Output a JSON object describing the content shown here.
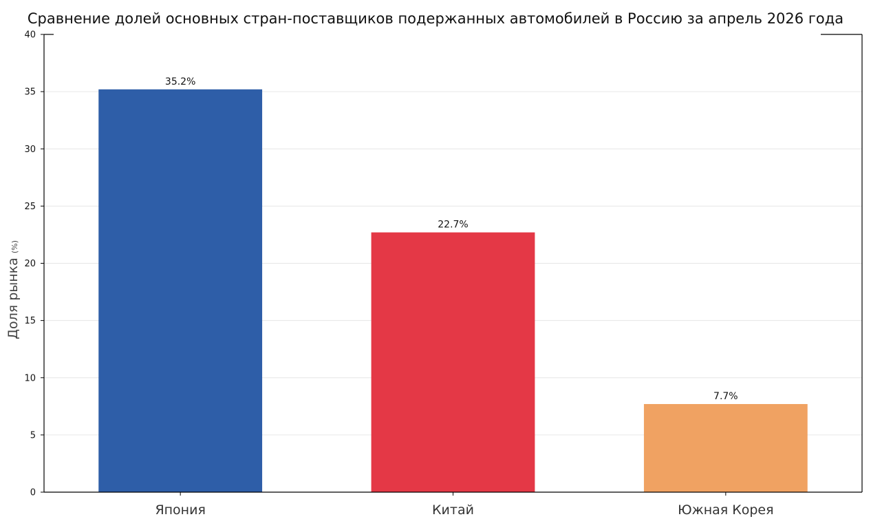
{
  "chart_data": {
    "type": "bar",
    "title": "Сравнение долей основных стран-поставщиков подержанных автомобилей в Россию за апрель 2026 года",
    "xlabel": "",
    "ylabel": "Доля рынка",
    "ylabel_unit": "(%)",
    "categories": [
      "Япония",
      "Китай",
      "Южная Корея"
    ],
    "values": [
      35.2,
      22.7,
      7.7
    ],
    "value_labels": [
      "35.2%",
      "22.7%",
      "7.7%"
    ],
    "colors": [
      "#2e5ea8",
      "#e43846",
      "#f0a262"
    ],
    "ylim": [
      0,
      40
    ],
    "yticks": [
      0,
      5,
      10,
      15,
      20,
      25,
      30,
      35,
      40
    ],
    "grid": "horizontal",
    "legend": "none"
  }
}
